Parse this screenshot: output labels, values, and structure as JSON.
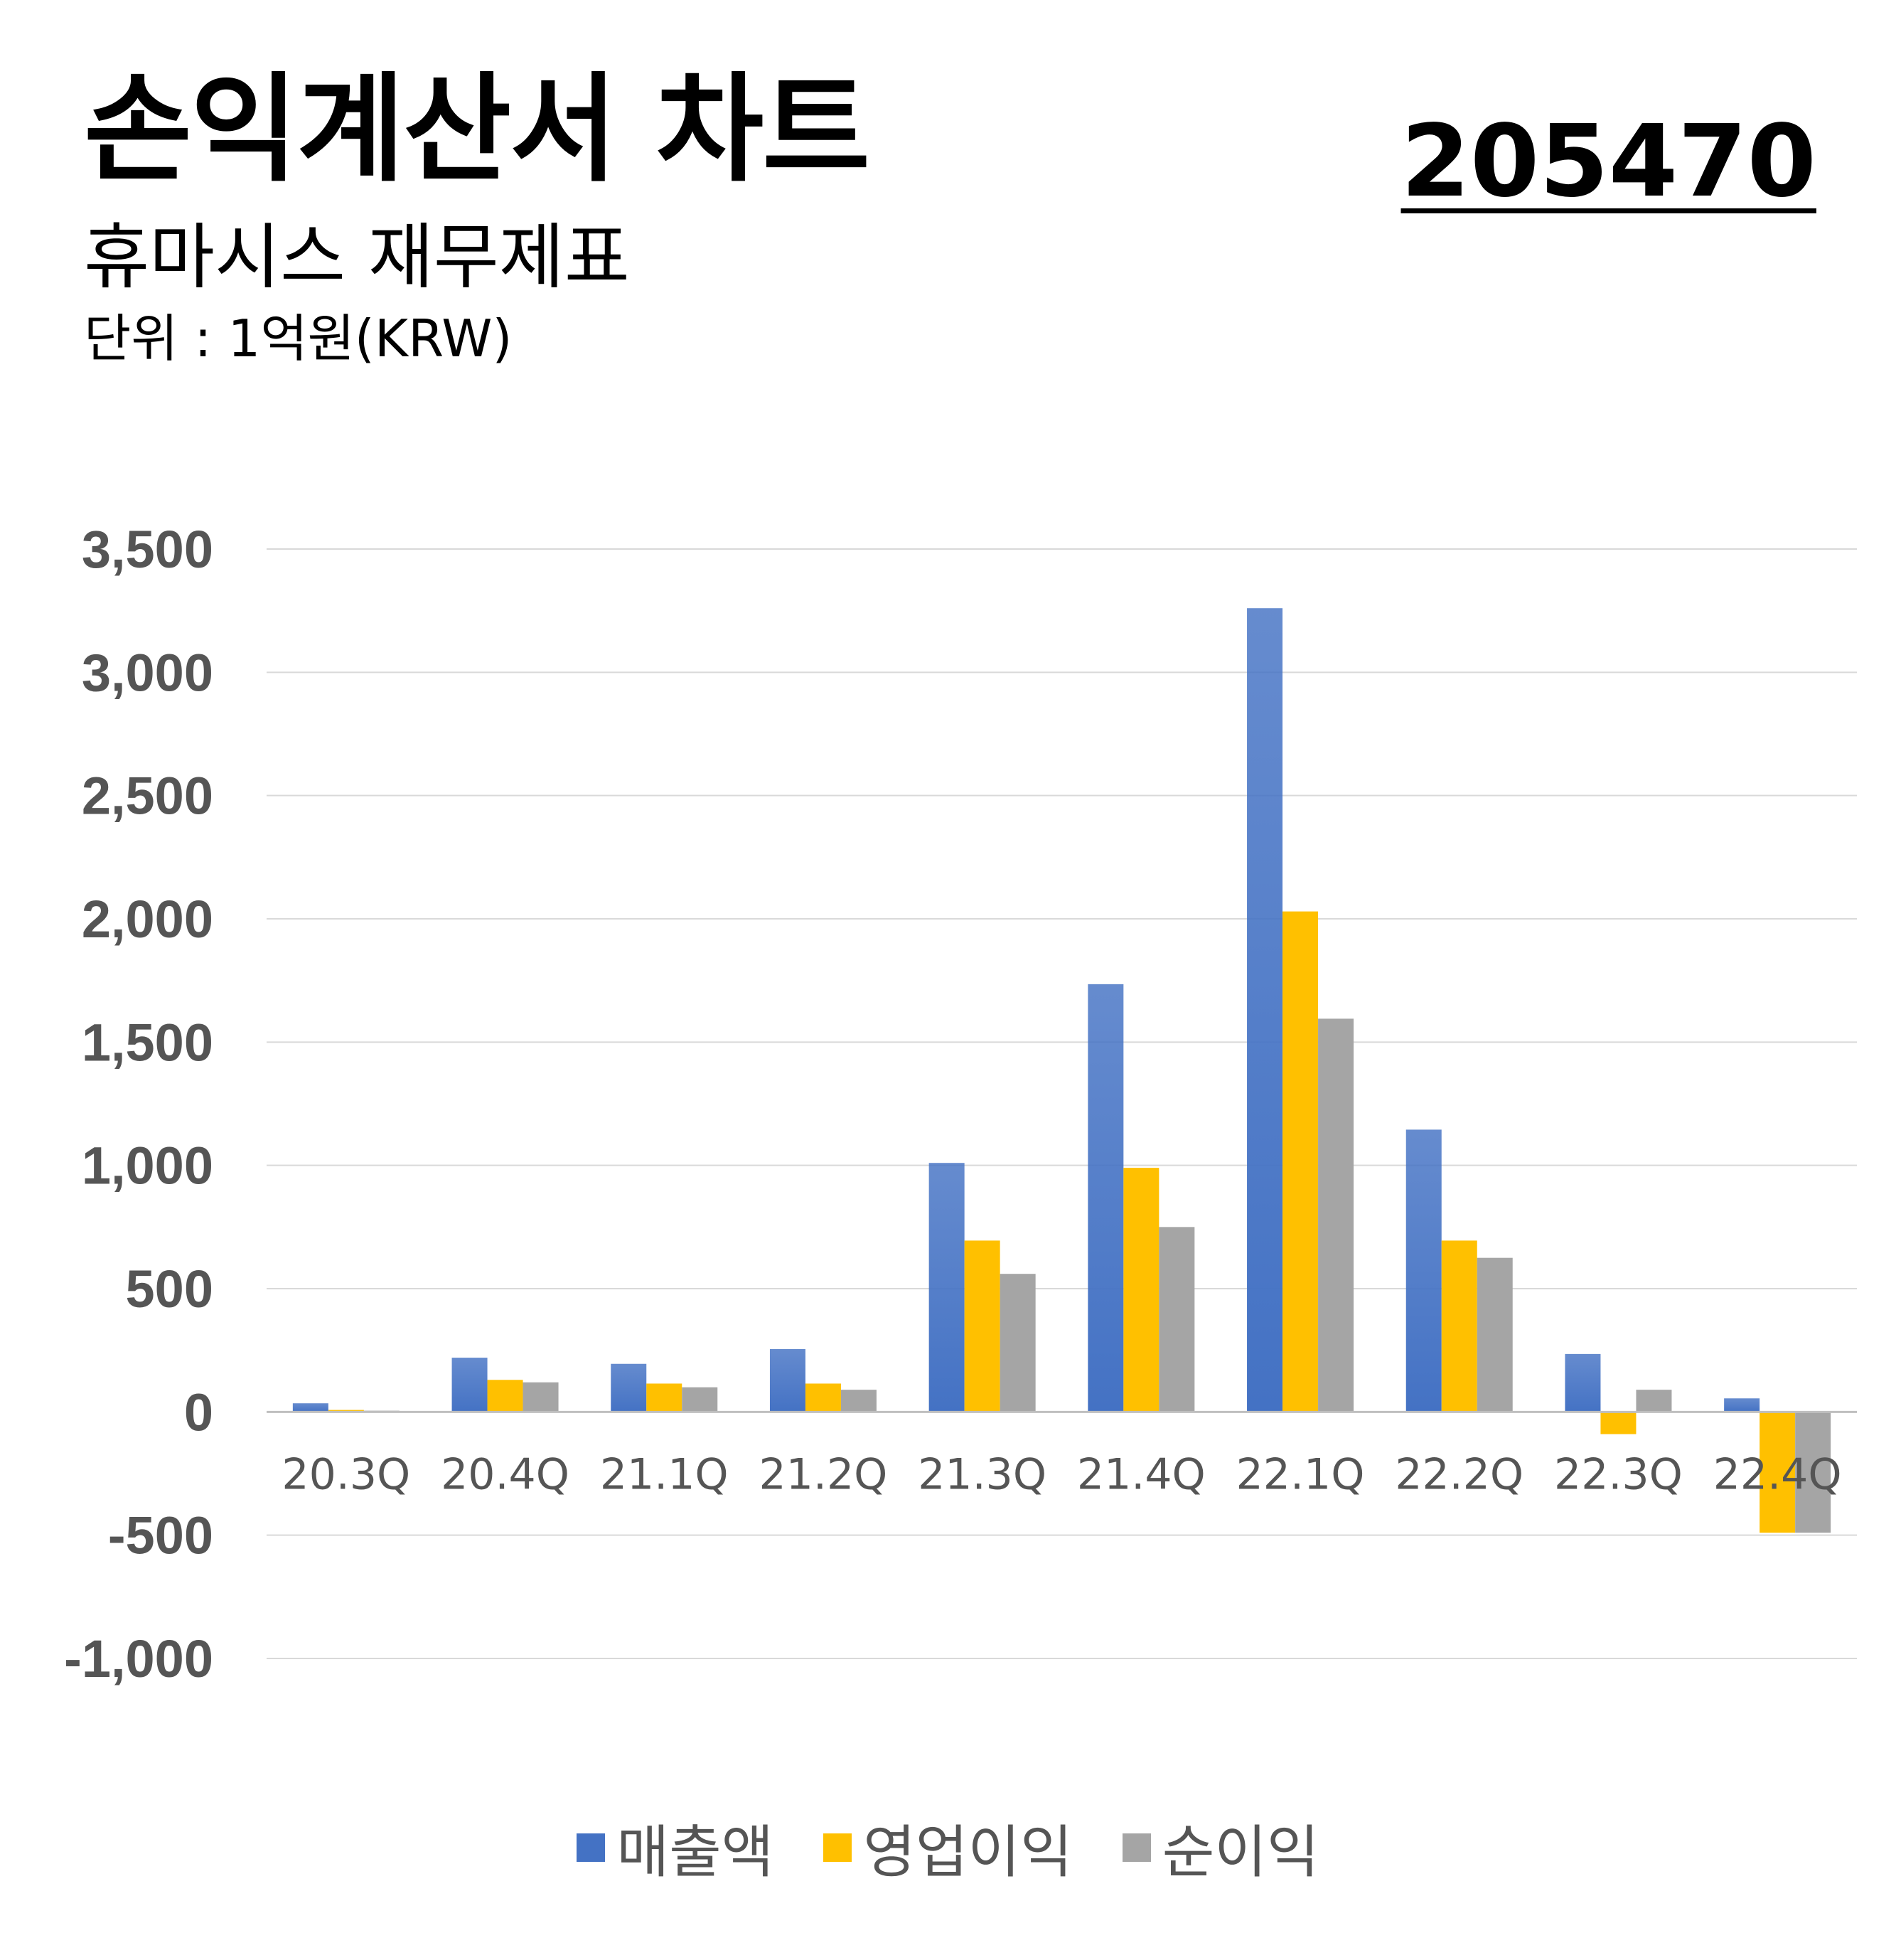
{
  "header": {
    "title": "손익계산서 차트",
    "ticker": "205470",
    "subtitle": "휴마시스 재무제표",
    "unit": "단위 : 1억원(KRW)"
  },
  "colors": {
    "revenue": "#4472C4",
    "operating_profit": "#FFC000",
    "net_profit": "#A5A5A5",
    "grid": "#d9d9d9",
    "tick_text": "#555555"
  },
  "chart_data": {
    "type": "bar",
    "title": "",
    "xlabel": "",
    "ylabel": "",
    "ylim": [
      -1000,
      3500
    ],
    "y_ticks": [
      3500,
      3000,
      2500,
      2000,
      1500,
      1000,
      500,
      0,
      -500,
      -1000
    ],
    "y_tick_labels": [
      "3,500",
      "3,000",
      "2,500",
      "2,000",
      "1,500",
      "1,000",
      "500",
      "0",
      "-500",
      "-1,000"
    ],
    "grid": true,
    "legend_position": "bottom",
    "categories": [
      "20.3Q",
      "20.4Q",
      "21.1Q",
      "21.2Q",
      "21.3Q",
      "21.4Q",
      "22.1Q",
      "22.2Q",
      "22.3Q",
      "22.4Q"
    ],
    "series": [
      {
        "name": "매출액",
        "values": [
          35,
          220,
          195,
          255,
          1010,
          1735,
          3260,
          1145,
          235,
          55
        ]
      },
      {
        "name": "영업이익",
        "values": [
          8,
          130,
          115,
          115,
          695,
          990,
          2030,
          695,
          -90,
          -490
        ]
      },
      {
        "name": "순이익",
        "values": [
          5,
          120,
          100,
          90,
          560,
          750,
          1595,
          625,
          90,
          -490
        ]
      }
    ]
  }
}
